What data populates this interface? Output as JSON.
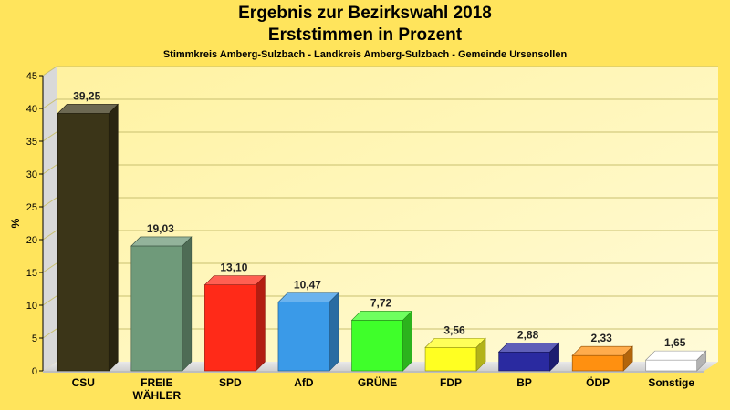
{
  "chart_data": {
    "type": "bar",
    "title_line1": "Ergebnis zur Bezirkswahl 2018",
    "title_line2": "Erststimmen in Prozent",
    "subtitle": "Stimmkreis Amberg-Sulzbach - Landkreis Amberg-Sulzbach - Gemeinde Ursensollen",
    "ylabel": "%",
    "ylim": [
      0,
      45
    ],
    "yticks": [
      0,
      5,
      10,
      15,
      20,
      25,
      30,
      35,
      40,
      45
    ],
    "grid": true,
    "categories": [
      "CSU",
      "FREIE WÄHLER",
      "SPD",
      "AfD",
      "GRÜNE",
      "FDP",
      "BP",
      "ÖDP",
      "Sonstige"
    ],
    "category_lines": [
      [
        "CSU"
      ],
      [
        "FREIE",
        "WÄHLER"
      ],
      [
        "SPD"
      ],
      [
        "AfD"
      ],
      [
        "GRÜNE"
      ],
      [
        "FDP"
      ],
      [
        "BP"
      ],
      [
        "ÖDP"
      ],
      [
        "Sonstige"
      ]
    ],
    "values": [
      39.25,
      19.03,
      13.1,
      10.47,
      7.72,
      3.56,
      2.88,
      2.33,
      1.65
    ],
    "value_labels": [
      "39,25",
      "19,03",
      "13,10",
      "10,47",
      "7,72",
      "3,56",
      "2,88",
      "2,33",
      "1,65"
    ],
    "colors": [
      "#3b3518",
      "#6f9a7a",
      "#ff2a18",
      "#3a9ae8",
      "#3fff2a",
      "#ffff22",
      "#2a2aa0",
      "#ff9010",
      "#ffffff"
    ]
  }
}
